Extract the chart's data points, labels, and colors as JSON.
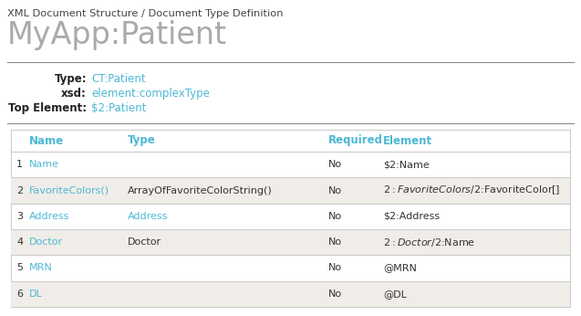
{
  "bg_color": "#ffffff",
  "subtitle": "XML Document Structure / Document Type Definition",
  "title": "MyApp:Patient",
  "subtitle_color": "#444444",
  "title_color": "#aaaaaa",
  "meta_labels": [
    "Type:",
    "xsd:",
    "Top Element:"
  ],
  "meta_values": [
    "CT:Patient",
    "element:complexType",
    "$2:Patient"
  ],
  "meta_label_color": "#222222",
  "meta_value_color": "#4db8d4",
  "col_headers": [
    "Name",
    "Type",
    "Required",
    "Element"
  ],
  "col_header_color": "#4db8d4",
  "rows": [
    {
      "num": "1",
      "name": "Name",
      "type": "",
      "required": "No",
      "element": "$2:Name",
      "name_link": true,
      "type_link": false,
      "shaded": false
    },
    {
      "num": "2",
      "name": "FavoriteColors()",
      "type": "ArrayOfFavoriteColorString()",
      "required": "No",
      "element": "$2:FavoriteColors/$2:FavoriteColor[]",
      "name_link": true,
      "type_link": false,
      "shaded": true
    },
    {
      "num": "3",
      "name": "Address",
      "type": "Address",
      "required": "No",
      "element": "$2:Address",
      "name_link": true,
      "type_link": true,
      "shaded": false
    },
    {
      "num": "4",
      "name": "Doctor",
      "type": "Doctor",
      "required": "No",
      "element": "$2:Doctor/$2:Name",
      "name_link": true,
      "type_link": false,
      "shaded": true
    },
    {
      "num": "5",
      "name": "MRN",
      "type": "",
      "required": "No",
      "element": "@MRN",
      "name_link": true,
      "type_link": false,
      "shaded": false
    },
    {
      "num": "6",
      "name": "DL",
      "type": "",
      "required": "No",
      "element": "@DL",
      "name_link": true,
      "type_link": false,
      "shaded": true
    }
  ],
  "link_color": "#4db8d4",
  "normal_color": "#333333",
  "shaded_color": "#f0ede8",
  "border_color": "#cccccc",
  "divider_color": "#888888"
}
